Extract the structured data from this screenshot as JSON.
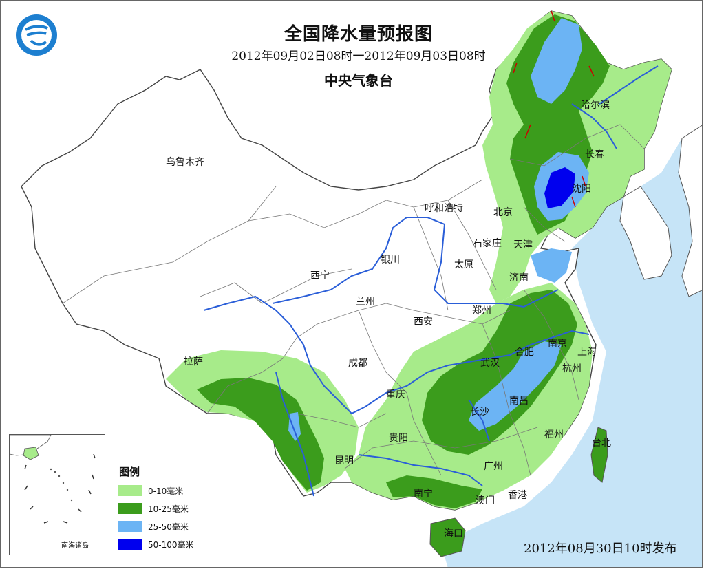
{
  "header": {
    "title": "全国降水量预报图",
    "period": "2012年09月02日08时一2012年09月03日08时",
    "issuer": "中央气象台"
  },
  "cities": {
    "urumqi": "乌鲁木齐",
    "harbin": "哈尔滨",
    "changchun": "长春",
    "shenyang": "沈阳",
    "hohhot": "呼和浩特",
    "beijing": "北京",
    "tianjin": "天津",
    "shijiazhuang": "石家庄",
    "taiyuan": "太原",
    "jinan": "济南",
    "yinchuan": "银川",
    "xining": "西宁",
    "lanzhou": "兰州",
    "zhengzhou": "郑州",
    "xian": "西安",
    "hefei": "合肥",
    "nanjing": "南京",
    "shanghai": "上海",
    "lhasa": "拉萨",
    "chengdu": "成都",
    "wuhan": "武汉",
    "hangzhou": "杭州",
    "chongqing": "重庆",
    "changsha": "长沙",
    "nanchang": "南昌",
    "guiyang": "贵阳",
    "fuzhou": "福州",
    "taipei": "台北",
    "kunming": "昆明",
    "guangzhou": "广州",
    "nanning": "南宁",
    "macau": "澳门",
    "hongkong": "香港",
    "haikou": "海口"
  },
  "legend": {
    "title": "图例",
    "items": [
      {
        "label": "0-10毫米",
        "color": "#a7eb8a"
      },
      {
        "label": "10-25毫米",
        "color": "#3b9c1c"
      },
      {
        "label": "25-50毫米",
        "color": "#6cb4f4"
      },
      {
        "label": "50-100毫米",
        "color": "#0000ee"
      }
    ]
  },
  "inset": {
    "label": "南海诸岛"
  },
  "footer": {
    "publish_date": "2012年08月30日10时发布"
  },
  "colors": {
    "sea": "#c6e4f7",
    "land": "#ffffff",
    "river": "#2a5ed8",
    "front": "#cc0000"
  }
}
